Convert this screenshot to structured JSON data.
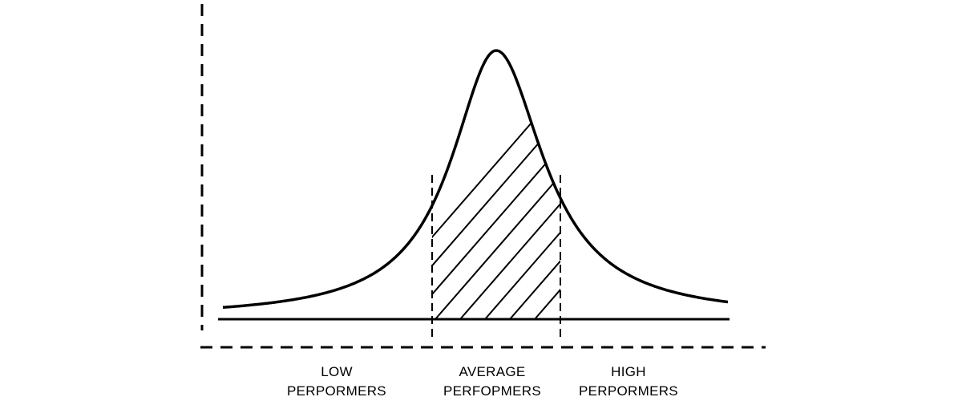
{
  "diagram": {
    "type": "bell-curve-distribution",
    "regions": [
      {
        "id": "low",
        "line1": "LOW",
        "line2": "PERPORMERS"
      },
      {
        "id": "average",
        "line1": "AVERAGE",
        "line2": "PERFOPMERS",
        "shaded": true
      },
      {
        "id": "high",
        "line1": "HIGH",
        "line2": "PERPORMERS"
      }
    ],
    "colors": {
      "ink": "#000000",
      "background": "#ffffff"
    }
  }
}
